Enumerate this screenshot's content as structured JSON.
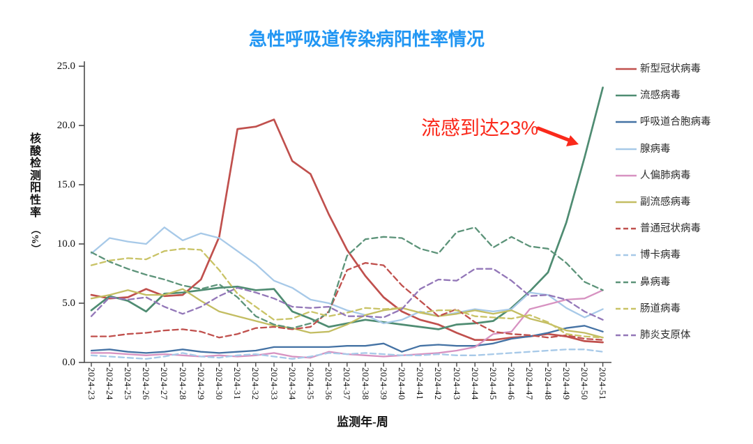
{
  "title": {
    "text": "急性呼吸道传染病阳性率情况",
    "color": "#2196F3"
  },
  "annotation": {
    "text": "流感到达23%",
    "color": "#FA291B"
  },
  "axes": {
    "x": {
      "title": "监测年-周"
    },
    "y": {
      "title": "核酸检测阳性率（%）",
      "title_stack": "核酸检测阳性率",
      "title_unit": "（%）",
      "tick_labels": [
        "0.0",
        "5.0",
        "10.0",
        "15.0",
        "20.0",
        "25.0"
      ],
      "tick_values": [
        0,
        5,
        10,
        15,
        20,
        25
      ]
    }
  },
  "chart_data": {
    "type": "line",
    "title": "急性呼吸道传染病阳性率情况",
    "xlabel": "监测年-周",
    "ylabel": "核酸检测阳性率（%）",
    "ylim": [
      0,
      25
    ],
    "grid": false,
    "legend_position": "right",
    "annotation": "流感到达23%",
    "categories": [
      "2024-23",
      "2024-24",
      "2024-25",
      "2024-26",
      "2024-27",
      "2024-28",
      "2024-29",
      "2024-30",
      "2024-31",
      "2024-32",
      "2024-33",
      "2024-34",
      "2024-35",
      "2024-36",
      "2024-37",
      "2024-38",
      "2024-39",
      "2024-40",
      "2024-41",
      "2024-42",
      "2024-43",
      "2024-44",
      "2024-45",
      "2024-46",
      "2024-47",
      "2024-48",
      "2024-49",
      "2024-50",
      "2024-51"
    ],
    "series": [
      {
        "name": "新型冠状病毒",
        "color": "#C0504D",
        "style": "solid",
        "values": [
          5.7,
          5.4,
          5.5,
          6.2,
          5.6,
          5.7,
          7.0,
          10.6,
          19.7,
          19.9,
          20.5,
          17.0,
          15.9,
          12.5,
          9.5,
          7.3,
          5.5,
          4.3,
          3.6,
          3.2,
          2.5,
          1.9,
          1.9,
          2.1,
          2.2,
          2.4,
          2.2,
          1.8,
          1.7
        ]
      },
      {
        "name": "流感病毒",
        "color": "#4F8C72",
        "style": "solid",
        "values": [
          4.4,
          5.6,
          5.2,
          4.3,
          5.8,
          5.9,
          6.1,
          6.3,
          6.4,
          6.1,
          6.2,
          4.3,
          3.7,
          3.0,
          3.3,
          3.6,
          3.4,
          3.2,
          3.0,
          2.8,
          3.2,
          3.3,
          3.5,
          4.6,
          6.0,
          7.6,
          11.8,
          17.3,
          23.2
        ]
      },
      {
        "name": "呼吸道合胞病毒",
        "color": "#4472A4",
        "style": "solid",
        "values": [
          1.0,
          1.1,
          0.9,
          0.8,
          0.9,
          1.1,
          0.9,
          0.8,
          0.9,
          1.0,
          1.3,
          1.3,
          1.3,
          1.3,
          1.4,
          1.4,
          1.6,
          0.9,
          1.4,
          1.5,
          1.4,
          1.4,
          1.6,
          2.0,
          2.2,
          2.5,
          2.9,
          3.1,
          2.6
        ]
      },
      {
        "name": "腺病毒",
        "color": "#A7C9E8",
        "style": "solid",
        "values": [
          9.2,
          10.5,
          10.2,
          10.0,
          11.4,
          10.3,
          10.9,
          10.5,
          9.4,
          8.3,
          6.9,
          6.3,
          5.3,
          5.0,
          4.4,
          4.0,
          3.3,
          3.6,
          4.3,
          3.9,
          4.2,
          4.5,
          4.3,
          4.5,
          5.9,
          5.7,
          4.6,
          3.8,
          4.5
        ]
      },
      {
        "name": "人偏肺病毒",
        "color": "#D792C1",
        "style": "solid",
        "values": [
          0.8,
          0.8,
          0.7,
          0.6,
          0.7,
          0.6,
          0.5,
          0.6,
          0.5,
          0.6,
          0.8,
          0.5,
          0.4,
          0.9,
          0.7,
          0.6,
          0.5,
          0.6,
          0.7,
          0.8,
          1.0,
          1.3,
          2.4,
          2.6,
          4.5,
          4.9,
          5.3,
          5.4,
          6.1
        ]
      },
      {
        "name": "副流感病毒",
        "color": "#C3BD62",
        "style": "solid",
        "values": [
          5.4,
          5.7,
          6.1,
          5.7,
          5.7,
          6.2,
          5.2,
          4.3,
          3.9,
          3.5,
          3.1,
          2.9,
          2.5,
          2.6,
          3.2,
          4.0,
          4.4,
          4.6,
          4.2,
          3.9,
          4.1,
          4.4,
          4.1,
          4.4,
          3.7,
          3.3,
          2.7,
          2.5,
          2.1
        ]
      },
      {
        "name": "普通冠状病毒",
        "color": "#C0504D",
        "style": "dashed",
        "values": [
          2.2,
          2.2,
          2.4,
          2.5,
          2.7,
          2.8,
          2.6,
          2.1,
          2.4,
          2.9,
          3.0,
          2.8,
          3.0,
          4.3,
          7.8,
          8.4,
          8.2,
          6.5,
          5.2,
          3.9,
          4.5,
          3.4,
          2.6,
          2.4,
          2.3,
          2.1,
          2.3,
          2.0,
          1.9
        ]
      },
      {
        "name": "博卡病毒",
        "color": "#A7C9E8",
        "style": "dashed",
        "values": [
          0.6,
          0.5,
          0.4,
          0.3,
          0.5,
          0.8,
          0.5,
          0.4,
          0.6,
          0.7,
          0.5,
          0.3,
          0.5,
          0.8,
          0.7,
          0.8,
          0.7,
          0.6,
          0.6,
          0.7,
          0.6,
          0.6,
          0.7,
          0.8,
          0.9,
          1.0,
          1.1,
          1.1,
          0.9
        ]
      },
      {
        "name": "鼻病毒",
        "color": "#5C9379",
        "style": "dashed",
        "values": [
          9.3,
          8.5,
          7.9,
          7.4,
          7.0,
          6.5,
          6.2,
          6.6,
          5.5,
          3.9,
          3.2,
          2.9,
          3.3,
          4.2,
          9.0,
          10.4,
          10.6,
          10.5,
          9.6,
          9.2,
          11.0,
          11.4,
          9.7,
          10.6,
          9.8,
          9.6,
          8.4,
          6.8,
          6.1
        ]
      },
      {
        "name": "肠道病毒",
        "color": "#C9C366",
        "style": "dashed",
        "values": [
          8.2,
          8.6,
          8.8,
          8.7,
          9.4,
          9.6,
          9.5,
          7.8,
          5.8,
          4.7,
          3.6,
          3.7,
          4.3,
          3.9,
          4.2,
          4.6,
          4.5,
          4.6,
          4.2,
          4.4,
          4.4,
          3.9,
          3.8,
          3.7,
          4.0,
          3.4,
          2.4,
          2.2,
          2.1
        ]
      },
      {
        "name": "肺炎支原体",
        "color": "#9377B8",
        "style": "dashed",
        "values": [
          3.9,
          5.5,
          5.3,
          5.5,
          4.7,
          4.1,
          4.7,
          5.6,
          6.3,
          5.9,
          5.4,
          4.7,
          4.6,
          4.7,
          3.9,
          3.9,
          3.8,
          4.5,
          6.2,
          7.0,
          6.9,
          7.9,
          7.9,
          6.9,
          5.6,
          5.7,
          5.3,
          4.3,
          3.6
        ]
      }
    ]
  }
}
